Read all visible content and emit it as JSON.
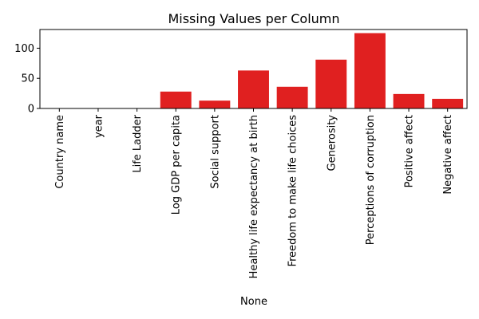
{
  "chart_data": {
    "type": "bar",
    "title": "Missing Values per Column",
    "xlabel": "None",
    "ylabel": "",
    "categories": [
      "Country name",
      "year",
      "Life Ladder",
      "Log GDP per capita",
      "Social support",
      "Healthy life expectancy at birth",
      "Freedom to make life choices",
      "Generosity",
      "Perceptions of corruption",
      "Positive affect",
      "Negative affect"
    ],
    "values": [
      0,
      0,
      0,
      28,
      13,
      63,
      36,
      81,
      125,
      24,
      16
    ],
    "ylim": [
      0,
      131
    ],
    "yticks": [
      0,
      50,
      100
    ],
    "bar_color": "#e02020",
    "grid": false
  }
}
